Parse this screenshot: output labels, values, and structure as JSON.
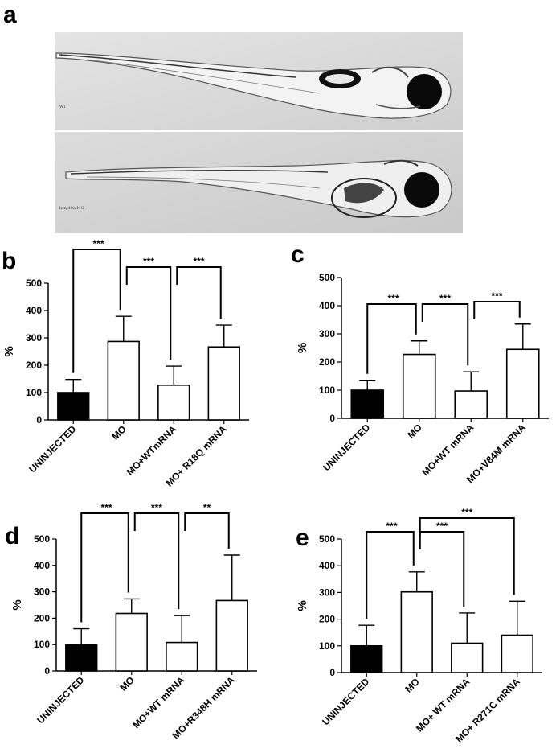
{
  "panel_a": {
    "letter": "a",
    "images": [
      {
        "label": "WT"
      },
      {
        "label": "kcnj10a MO"
      }
    ]
  },
  "chart_data": [
    {
      "panel": "b",
      "type": "bar",
      "ylabel": "%",
      "ylim": [
        0,
        500
      ],
      "yticks": [
        0,
        100,
        200,
        300,
        400,
        500
      ],
      "categories": [
        "UNINJECTED",
        "MO",
        "MO+WTmRNA",
        "MO+ R18Q mRNA"
      ],
      "values": [
        100,
        287,
        127,
        267
      ],
      "errors": [
        48,
        92,
        70,
        80
      ],
      "fills": [
        "#000000",
        "#ffffff",
        "#ffffff",
        "#ffffff"
      ],
      "significance": [
        {
          "from": 0,
          "to": 1,
          "label": "***"
        },
        {
          "from": 1,
          "to": 2,
          "label": "***"
        },
        {
          "from": 2,
          "to": 3,
          "label": "***"
        }
      ]
    },
    {
      "panel": "c",
      "type": "bar",
      "ylabel": "%",
      "ylim": [
        0,
        500
      ],
      "yticks": [
        0,
        100,
        200,
        300,
        400,
        500
      ],
      "categories": [
        "UNINJECTED",
        "MO",
        "MO+WT mRNA",
        "MO+V84M mRNA"
      ],
      "values": [
        100,
        227,
        97,
        245
      ],
      "errors": [
        35,
        48,
        68,
        90
      ],
      "fills": [
        "#000000",
        "#ffffff",
        "#ffffff",
        "#ffffff"
      ],
      "significance": [
        {
          "from": 0,
          "to": 1,
          "label": "***"
        },
        {
          "from": 1,
          "to": 2,
          "label": "***"
        },
        {
          "from": 2,
          "to": 3,
          "label": "***"
        }
      ]
    },
    {
      "panel": "d",
      "type": "bar",
      "ylabel": "%",
      "ylim": [
        0,
        500
      ],
      "yticks": [
        0,
        100,
        200,
        300,
        400,
        500
      ],
      "categories": [
        "UNINJECTED",
        "MO",
        "MO+WT mRNA",
        "MO+R348H mRNA"
      ],
      "values": [
        100,
        218,
        108,
        267
      ],
      "errors": [
        60,
        55,
        102,
        172
      ],
      "fills": [
        "#000000",
        "#ffffff",
        "#ffffff",
        "#ffffff"
      ],
      "significance": [
        {
          "from": 0,
          "to": 1,
          "label": "***"
        },
        {
          "from": 1,
          "to": 2,
          "label": "***"
        },
        {
          "from": 2,
          "to": 3,
          "label": "**"
        }
      ]
    },
    {
      "panel": "e",
      "type": "bar",
      "ylabel": "%",
      "ylim": [
        0,
        500
      ],
      "yticks": [
        0,
        100,
        200,
        300,
        400,
        500
      ],
      "categories": [
        "UNINJECTED",
        "MO",
        "MO+ WT mRNA",
        "MO+ R271C mRNA"
      ],
      "values": [
        100,
        302,
        110,
        140
      ],
      "errors": [
        77,
        75,
        113,
        127
      ],
      "fills": [
        "#000000",
        "#ffffff",
        "#ffffff",
        "#ffffff"
      ],
      "significance": [
        {
          "from": 0,
          "to": 1,
          "label": "***"
        },
        {
          "from": 1,
          "to": 2,
          "label": "***"
        },
        {
          "from": 1,
          "to": 3,
          "label": "***"
        }
      ]
    }
  ]
}
